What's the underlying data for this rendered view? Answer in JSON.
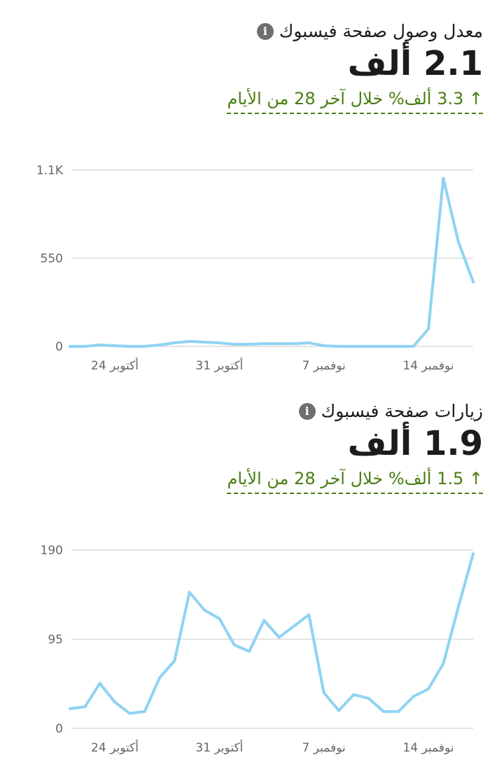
{
  "line_color": "#8fd3f2",
  "delta_color": "#4a7d12",
  "chart_data": [
    {
      "type": "line",
      "title": "معدل وصول صفحة فيسبوك",
      "info_icon": "info-icon",
      "total": "2.1 ألف",
      "delta": "↑ 3.3 ألف% خلال آخر 28 من الأيام",
      "y_ticks": [
        "0",
        "550",
        "1.1K"
      ],
      "y_tick_values": [
        0,
        550,
        1100
      ],
      "ylim": [
        0,
        1100
      ],
      "x_tick_labels": [
        "24 أكتوبر",
        "31 أكتوبر",
        "7 نوفمبر",
        "14 نوفمبر"
      ],
      "x_tick_index": [
        3,
        10,
        17,
        24
      ],
      "grid": true,
      "values": [
        0,
        0,
        9,
        4,
        0,
        0,
        9,
        22,
        31,
        26,
        22,
        13,
        13,
        17,
        17,
        17,
        22,
        4,
        0,
        0,
        0,
        0,
        0,
        0,
        109,
        1048,
        655,
        402
      ]
    },
    {
      "type": "line",
      "title": "زيارات صفحة فيسبوك",
      "info_icon": "info-icon",
      "total": "1.9 ألف",
      "delta": "↑ 1.5 ألف% خلال آخر 28 من الأيام",
      "y_ticks": [
        "0",
        "95",
        "190"
      ],
      "y_tick_values": [
        0,
        95,
        190
      ],
      "ylim": [
        0,
        190
      ],
      "x_tick_labels": [
        "24 أكتوبر",
        "31 أكتوبر",
        "7 نوفمبر",
        "14 نوفمبر"
      ],
      "x_tick_index": [
        3,
        10,
        17,
        24
      ],
      "grid": true,
      "values": [
        21,
        23,
        48,
        28,
        16,
        18,
        54,
        72,
        145,
        126,
        117,
        89,
        82,
        115,
        97,
        109,
        121,
        38,
        19,
        36,
        32,
        18,
        18,
        34,
        42,
        69,
        129,
        186
      ]
    }
  ]
}
